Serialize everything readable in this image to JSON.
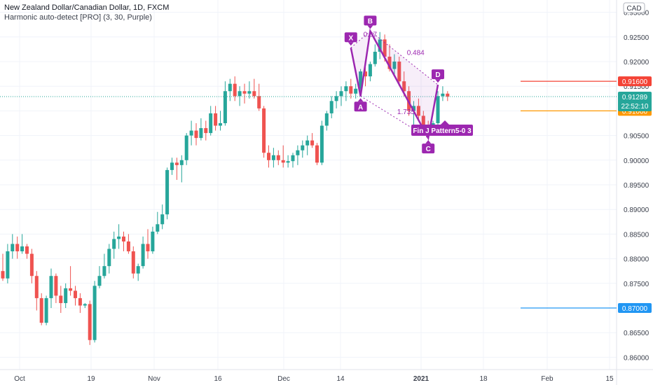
{
  "header": {
    "symbol": "New Zealand Dollar/Canadian Dollar, 1D, FXCM",
    "indicator": "Harmonic auto-detect [PRO] (3, 30, Purple)"
  },
  "currency": "CAD",
  "colors": {
    "up": "#26a69a",
    "down": "#ef5350",
    "pattern": "#9c27b0",
    "grid": "#f0f3fa",
    "red_level": "#f44336",
    "orange_level": "#ff9800",
    "blue_level": "#2196f3",
    "last_price": "#26a69a"
  },
  "chart_data": {
    "type": "candlestick",
    "x_axis_labels": [
      "Oct",
      "19",
      "Nov",
      "16",
      "Dec",
      "14",
      "2021",
      "18",
      "Feb",
      "15"
    ],
    "y_ticks": [
      "0.93000",
      "0.92500",
      "0.92000",
      "0.91500",
      "0.91000",
      "0.90500",
      "0.90000",
      "0.89500",
      "0.89000",
      "0.88500",
      "0.88000",
      "0.87500",
      "0.87000",
      "0.86500",
      "0.86000"
    ],
    "ylim": [
      0.8575,
      0.9325
    ],
    "candles": [
      [
        0.8775,
        0.881,
        0.8755,
        0.876
      ],
      [
        0.876,
        0.883,
        0.875,
        0.8815
      ],
      [
        0.8815,
        0.885,
        0.88,
        0.883
      ],
      [
        0.883,
        0.8845,
        0.88,
        0.8815
      ],
      [
        0.8815,
        0.885,
        0.881,
        0.8825
      ],
      [
        0.8825,
        0.883,
        0.88,
        0.881
      ],
      [
        0.881,
        0.882,
        0.875,
        0.8765
      ],
      [
        0.8765,
        0.8775,
        0.8695,
        0.872
      ],
      [
        0.872,
        0.873,
        0.8665,
        0.867
      ],
      [
        0.867,
        0.8725,
        0.8665,
        0.872
      ],
      [
        0.872,
        0.878,
        0.87,
        0.8765
      ],
      [
        0.8765,
        0.877,
        0.871,
        0.8725
      ],
      [
        0.8725,
        0.8745,
        0.869,
        0.871
      ],
      [
        0.871,
        0.875,
        0.87,
        0.874
      ],
      [
        0.874,
        0.8785,
        0.8725,
        0.8735
      ],
      [
        0.8735,
        0.8745,
        0.8705,
        0.872
      ],
      [
        0.872,
        0.873,
        0.869,
        0.8705
      ],
      [
        0.8705,
        0.871,
        0.87,
        0.8708
      ],
      [
        0.8708,
        0.8715,
        0.8625,
        0.8635
      ],
      [
        0.8635,
        0.8755,
        0.863,
        0.8745
      ],
      [
        0.8745,
        0.8785,
        0.874,
        0.8765
      ],
      [
        0.8765,
        0.881,
        0.876,
        0.8785
      ],
      [
        0.8785,
        0.883,
        0.877,
        0.882
      ],
      [
        0.882,
        0.8855,
        0.88,
        0.884
      ],
      [
        0.884,
        0.887,
        0.882,
        0.8845
      ],
      [
        0.8845,
        0.8855,
        0.8815,
        0.8835
      ],
      [
        0.8835,
        0.885,
        0.881,
        0.8815
      ],
      [
        0.8815,
        0.8825,
        0.876,
        0.877
      ],
      [
        0.877,
        0.879,
        0.8755,
        0.8785
      ],
      [
        0.8785,
        0.8845,
        0.878,
        0.883
      ],
      [
        0.883,
        0.886,
        0.88,
        0.8815
      ],
      [
        0.8815,
        0.8865,
        0.881,
        0.8855
      ],
      [
        0.8855,
        0.8895,
        0.885,
        0.887
      ],
      [
        0.887,
        0.891,
        0.886,
        0.889
      ],
      [
        0.889,
        0.8985,
        0.888,
        0.898
      ],
      [
        0.898,
        0.9005,
        0.897,
        0.8995
      ],
      [
        0.8995,
        0.9005,
        0.896,
        0.899
      ],
      [
        0.899,
        0.901,
        0.8955,
        0.9
      ],
      [
        0.9,
        0.9055,
        0.899,
        0.905
      ],
      [
        0.905,
        0.908,
        0.903,
        0.906
      ],
      [
        0.906,
        0.9075,
        0.903,
        0.9045
      ],
      [
        0.9045,
        0.9085,
        0.904,
        0.9065
      ],
      [
        0.9065,
        0.908,
        0.904,
        0.9055
      ],
      [
        0.9055,
        0.911,
        0.905,
        0.9095
      ],
      [
        0.9095,
        0.911,
        0.906,
        0.907
      ],
      [
        0.907,
        0.91,
        0.906,
        0.9075
      ],
      [
        0.9075,
        0.916,
        0.907,
        0.914
      ],
      [
        0.914,
        0.9165,
        0.912,
        0.9155
      ],
      [
        0.9155,
        0.917,
        0.912,
        0.913
      ],
      [
        0.913,
        0.915,
        0.911,
        0.914
      ],
      [
        0.914,
        0.9155,
        0.9115,
        0.9135
      ],
      [
        0.9135,
        0.916,
        0.9125,
        0.914
      ],
      [
        0.914,
        0.9165,
        0.9125,
        0.913
      ],
      [
        0.913,
        0.9155,
        0.91,
        0.9105
      ],
      [
        0.9105,
        0.911,
        0.9005,
        0.9015
      ],
      [
        0.9015,
        0.903,
        0.8985,
        0.9
      ],
      [
        0.9,
        0.9025,
        0.8985,
        0.901
      ],
      [
        0.901,
        0.902,
        0.899,
        0.9
      ],
      [
        0.9,
        0.903,
        0.8985,
        0.8995
      ],
      [
        0.8995,
        0.901,
        0.8985,
        0.8998
      ],
      [
        0.8998,
        0.9015,
        0.8985,
        0.901
      ],
      [
        0.901,
        0.903,
        0.899,
        0.902
      ],
      [
        0.902,
        0.904,
        0.9005,
        0.903
      ],
      [
        0.903,
        0.905,
        0.901,
        0.904
      ],
      [
        0.904,
        0.9055,
        0.9025,
        0.903
      ],
      [
        0.903,
        0.9035,
        0.899,
        0.8995
      ],
      [
        0.8995,
        0.908,
        0.899,
        0.907
      ],
      [
        0.907,
        0.91,
        0.906,
        0.9095
      ],
      [
        0.9095,
        0.913,
        0.9085,
        0.912
      ],
      [
        0.912,
        0.914,
        0.9105,
        0.913
      ],
      [
        0.913,
        0.915,
        0.911,
        0.914
      ],
      [
        0.914,
        0.916,
        0.912,
        0.915
      ],
      [
        0.915,
        0.9165,
        0.9125,
        0.9135
      ],
      [
        0.9135,
        0.9155,
        0.9125,
        0.9145
      ],
      [
        0.9145,
        0.9185,
        0.914,
        0.918
      ],
      [
        0.918,
        0.92,
        0.915,
        0.917
      ],
      [
        0.917,
        0.92,
        0.916,
        0.9195
      ],
      [
        0.9195,
        0.9235,
        0.919,
        0.922
      ],
      [
        0.922,
        0.926,
        0.9205,
        0.9245
      ],
      [
        0.9245,
        0.9255,
        0.92,
        0.921
      ],
      [
        0.921,
        0.9235,
        0.918,
        0.9185
      ],
      [
        0.9185,
        0.9215,
        0.917,
        0.92
      ],
      [
        0.92,
        0.921,
        0.915,
        0.916
      ],
      [
        0.916,
        0.918,
        0.913,
        0.914
      ],
      [
        0.914,
        0.915,
        0.909,
        0.91
      ],
      [
        0.91,
        0.912,
        0.907,
        0.911
      ],
      [
        0.911,
        0.9125,
        0.908,
        0.909
      ],
      [
        0.909,
        0.91,
        0.906,
        0.907
      ],
      [
        0.907,
        0.908,
        0.905,
        0.9065
      ],
      [
        0.9065,
        0.908,
        0.906,
        0.9075
      ],
      [
        0.9075,
        0.914,
        0.907,
        0.913
      ],
      [
        0.913,
        0.915,
        0.912,
        0.9135
      ],
      [
        0.9135,
        0.914,
        0.912,
        0.9129
      ]
    ],
    "pattern": {
      "points": [
        {
          "label": "X",
          "i": 72,
          "price": 0.9228
        },
        {
          "label": "A",
          "i": 74,
          "price": 0.913
        },
        {
          "label": "B",
          "i": 76,
          "price": 0.9262
        },
        {
          "label": "C",
          "i": 88,
          "price": 0.9045
        },
        {
          "label": "D",
          "i": 90,
          "price": 0.9153
        }
      ],
      "ratios": [
        {
          "text": "0.67",
          "from": "X",
          "to": "B"
        },
        {
          "text": "0.484",
          "from": "B",
          "to": "D"
        },
        {
          "text": "1.735",
          "from": "A",
          "to": "C"
        }
      ],
      "label": "Fin J Pattern5-0 3"
    },
    "levels": [
      {
        "price": 0.916,
        "label": "0.91600",
        "color": "#f44336"
      },
      {
        "price": 0.91,
        "label": "0.91000",
        "color": "#ff9800"
      },
      {
        "price": 0.87,
        "label": "0.87000",
        "color": "#2196f3"
      }
    ],
    "last_price": {
      "price": 0.91289,
      "label": "0.91289",
      "countdown": "22:52:10"
    }
  }
}
